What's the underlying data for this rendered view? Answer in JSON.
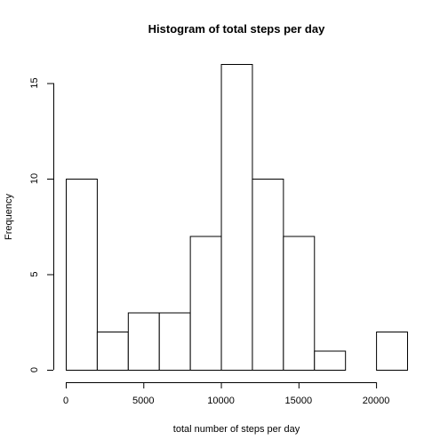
{
  "chart_data": {
    "type": "bar",
    "title": "Histogram of total steps per day",
    "xlabel": "total number of steps per day",
    "ylabel": "Frequency",
    "bin_edges": [
      0,
      2000,
      4000,
      6000,
      8000,
      10000,
      12000,
      14000,
      16000,
      18000,
      20000,
      22000
    ],
    "values": [
      10,
      2,
      3,
      3,
      7,
      16,
      10,
      7,
      1,
      0,
      2
    ],
    "xlim": [
      0,
      22000
    ],
    "ylim": [
      0,
      16
    ],
    "x_ticks": [
      0,
      5000,
      10000,
      15000,
      20000
    ],
    "x_tick_labels": [
      "0",
      "5000",
      "10000",
      "15000",
      "20000"
    ],
    "y_ticks": [
      0,
      5,
      10,
      15
    ],
    "y_tick_labels": [
      "0",
      "5",
      "10",
      "15"
    ],
    "grid": false,
    "legend": "none"
  }
}
